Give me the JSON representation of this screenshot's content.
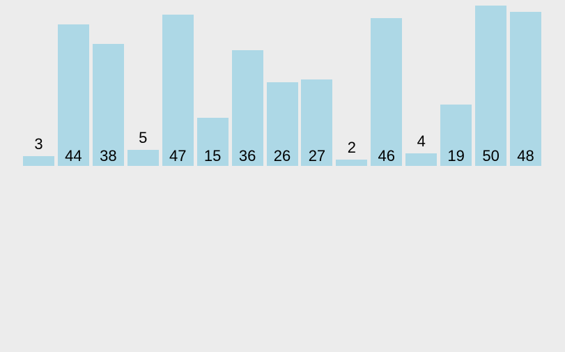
{
  "chart_data": {
    "type": "bar",
    "title": "",
    "xlabel": "",
    "ylabel": "",
    "values": [
      3,
      44,
      38,
      5,
      47,
      15,
      36,
      26,
      27,
      2,
      46,
      4,
      19,
      50,
      48
    ],
    "labels": [
      "3",
      "44",
      "38",
      "5",
      "47",
      "15",
      "36",
      "26",
      "27",
      "2",
      "46",
      "4",
      "19",
      "50",
      "48"
    ],
    "ylim": [
      0,
      50
    ],
    "grid": false,
    "legend": false,
    "axes_visible": false,
    "bar_color": "#add8e6",
    "label_color": "#000000",
    "background_color": "#ececec",
    "label_placement": "inside-bottom for tall bars, above bar for short bars"
  }
}
